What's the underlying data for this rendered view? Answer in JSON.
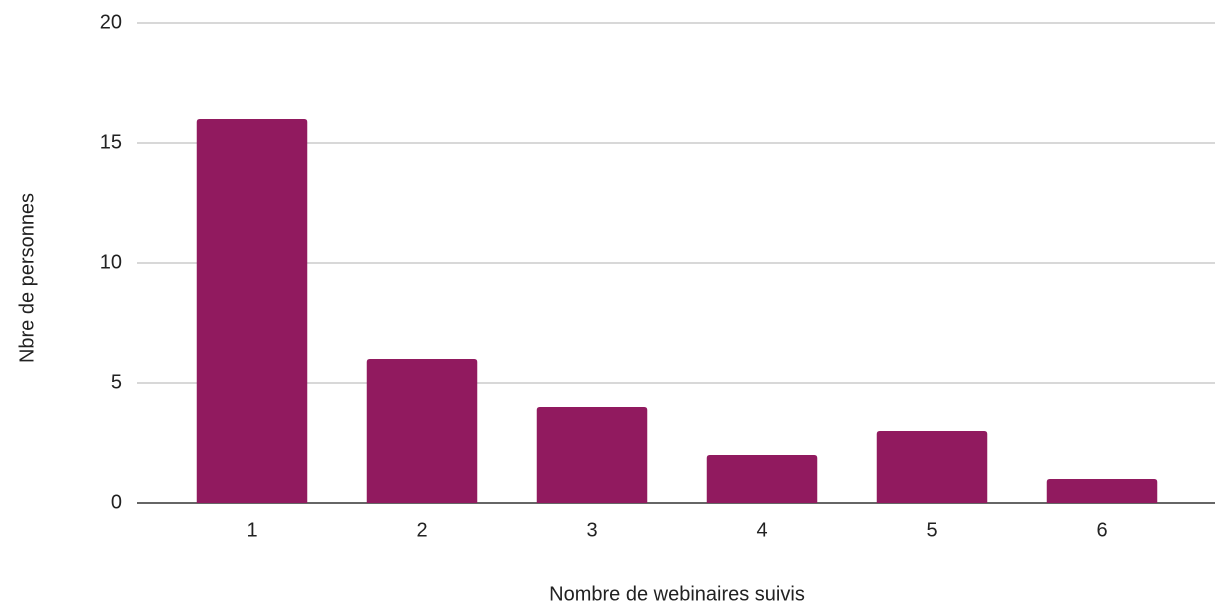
{
  "chart_data": {
    "type": "bar",
    "x_label": "Nombre de webinaires suivis",
    "y_label": "Nbre de personnes",
    "categories": [
      "1",
      "2",
      "3",
      "4",
      "5",
      "6"
    ],
    "values": [
      16,
      6,
      4,
      2,
      3,
      1
    ],
    "color": "#911a5f",
    "ylim": [
      0,
      20
    ],
    "yticks": [
      0,
      5,
      10,
      15,
      20
    ],
    "grid": true
  }
}
